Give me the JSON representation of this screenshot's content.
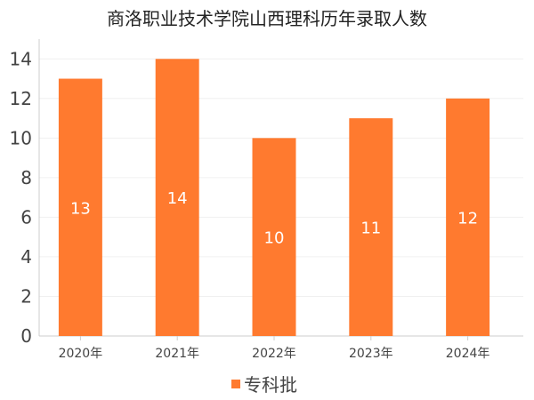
{
  "chart_data": {
    "type": "bar",
    "title": "商洛职业技术学院山西理科历年录取人数",
    "categories": [
      "2020年",
      "2021年",
      "2022年",
      "2023年",
      "2024年"
    ],
    "series": [
      {
        "name": "专科批",
        "values": [
          13,
          14,
          10,
          11,
          12
        ],
        "color": "#FF7A2F"
      }
    ],
    "ylim": [
      0,
      15
    ],
    "yticks": [
      0,
      2,
      4,
      6,
      8,
      10,
      12,
      14
    ],
    "grid": true,
    "legend_position": "bottom"
  }
}
